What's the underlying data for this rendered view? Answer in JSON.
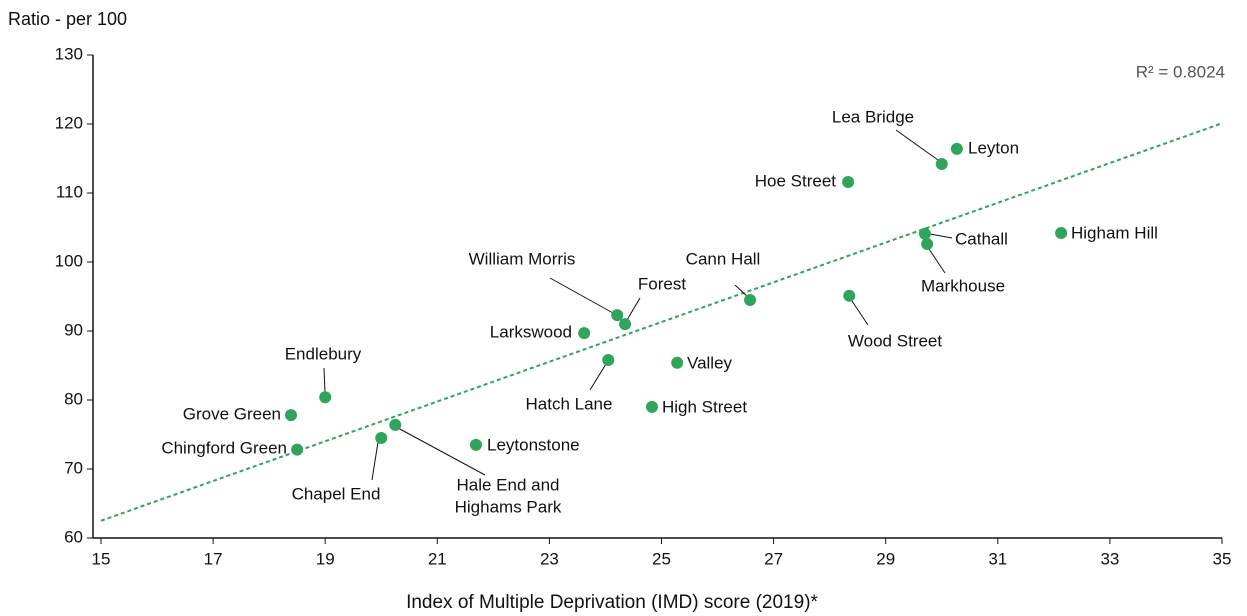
{
  "chart_data": {
    "type": "scatter",
    "y_label": "Ratio - per 100",
    "x_label": "Index of Multiple Deprivation (IMD) score (2019)*",
    "annotation": "R² = 0.8024",
    "color": "#2ea55a",
    "labels": [
      "Lea Bridge",
      "Leyton",
      "Hoe Street",
      "Cathall",
      "Markhouse",
      "Higham Hill",
      "Cann Hall",
      "Wood Street",
      "William Morris",
      "Forest",
      "Larkswood",
      "Hatch Lane",
      "Valley",
      "High Street",
      "Endlebury",
      "Grove Green",
      "Chingford Green",
      "Chapel End",
      [
        "Hale End and",
        "Highams Park"
      ],
      "Leytonstone"
    ],
    "x": [
      30.0,
      30.27,
      28.33,
      29.7,
      29.74,
      32.13,
      26.58,
      28.35,
      24.21,
      24.35,
      23.62,
      24.05,
      25.28,
      24.83,
      19.0,
      18.39,
      18.5,
      20.0,
      20.25,
      21.69
    ],
    "y": [
      114.2,
      116.4,
      111.6,
      104.1,
      102.6,
      104.2,
      94.5,
      95.1,
      92.3,
      91.0,
      89.7,
      85.8,
      85.4,
      79.0,
      80.4,
      77.8,
      72.8,
      74.5,
      76.4,
      73.5
    ],
    "trendline": {
      "x": [
        15,
        35
      ],
      "y": [
        62.5,
        120.1
      ]
    },
    "xlim": [
      15,
      35
    ],
    "xticks": [
      15,
      17,
      19,
      21,
      23,
      25,
      27,
      29,
      31,
      33,
      35
    ],
    "ylim": [
      60,
      130
    ],
    "yticks": [
      60,
      70,
      80,
      90,
      100,
      110,
      120,
      130
    ],
    "grid": false
  }
}
